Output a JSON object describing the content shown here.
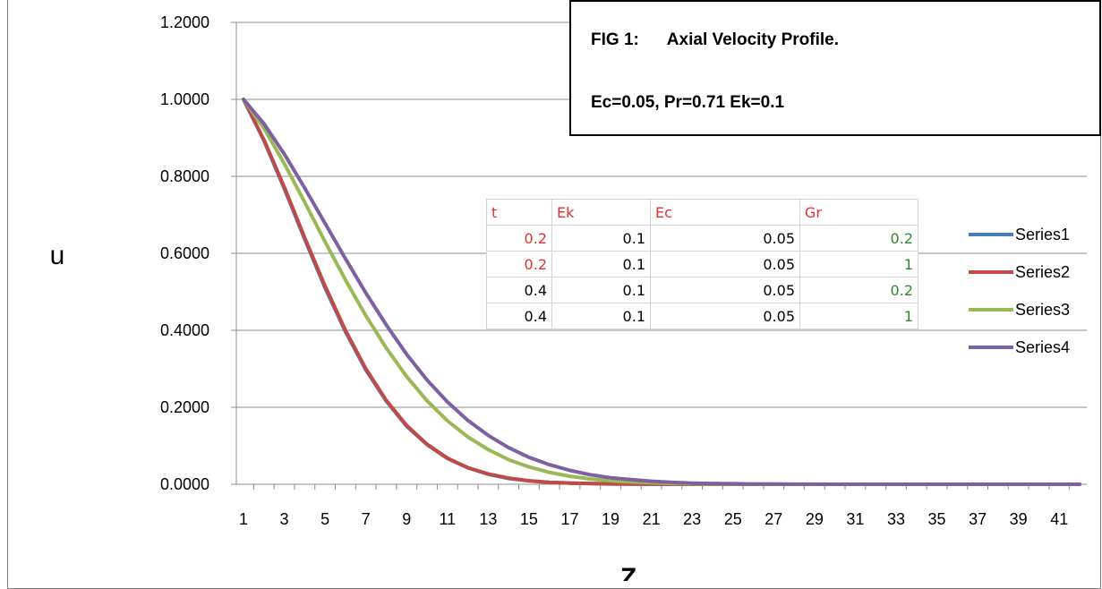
{
  "chart_data": {
    "type": "line",
    "title_line1": "FIG 1:      Axial Velocity Profile.",
    "title_line2": "Ec=0.05, Pr=0.71 Ek=0.1",
    "xlabel": "Z",
    "ylabel": "u",
    "x": [
      1,
      2,
      3,
      4,
      5,
      6,
      7,
      8,
      9,
      10,
      11,
      12,
      13,
      14,
      15,
      16,
      17,
      18,
      19,
      20,
      21,
      22,
      23,
      24,
      25,
      26,
      27,
      28,
      29,
      30,
      31,
      32,
      33,
      34,
      35,
      36,
      37,
      38,
      39,
      40,
      41,
      42
    ],
    "x_tick_labels": [
      "1",
      "3",
      "5",
      "7",
      "9",
      "11",
      "13",
      "15",
      "17",
      "19",
      "21",
      "23",
      "25",
      "27",
      "29",
      "31",
      "33",
      "35",
      "37",
      "39",
      "41"
    ],
    "ylim": [
      0,
      1.2
    ],
    "y_tick_labels": [
      "0.0000",
      "0.2000",
      "0.4000",
      "0.6000",
      "0.8000",
      "1.0000",
      "1.2000"
    ],
    "grid": true,
    "legend_position": "right",
    "series": [
      {
        "name": "Series1",
        "color": "#4a7ebb",
        "values": [
          1.0,
          0.893,
          0.768,
          0.637,
          0.51,
          0.396,
          0.297,
          0.216,
          0.151,
          0.103,
          0.067,
          0.043,
          0.026,
          0.015,
          0.009,
          0.005,
          0.003,
          0.002,
          0.001,
          0.0005,
          0.0003,
          0.0001,
          0,
          0,
          0,
          0,
          0,
          0,
          0,
          0,
          0,
          0,
          0,
          0,
          0,
          0,
          0,
          0,
          0,
          0,
          0,
          0
        ]
      },
      {
        "name": "Series2",
        "color": "#be4b48",
        "values": [
          1.0,
          0.895,
          0.772,
          0.641,
          0.515,
          0.4,
          0.3,
          0.218,
          0.153,
          0.104,
          0.068,
          0.043,
          0.027,
          0.016,
          0.009,
          0.005,
          0.003,
          0.002,
          0.001,
          0.0005,
          0.0003,
          0.0001,
          0,
          0,
          0,
          0,
          0,
          0,
          0,
          0,
          0,
          0,
          0,
          0,
          0,
          0,
          0,
          0,
          0,
          0,
          0,
          0
        ]
      },
      {
        "name": "Series3",
        "color": "#98b954",
        "values": [
          1.0,
          0.925,
          0.833,
          0.733,
          0.63,
          0.531,
          0.438,
          0.354,
          0.28,
          0.217,
          0.165,
          0.123,
          0.09,
          0.064,
          0.045,
          0.031,
          0.021,
          0.014,
          0.009,
          0.006,
          0.004,
          0.002,
          0.0015,
          0.001,
          0.0005,
          0.0003,
          0.0002,
          0.0001,
          0,
          0,
          0,
          0,
          0,
          0,
          0,
          0,
          0,
          0,
          0,
          0,
          0,
          0
        ]
      },
      {
        "name": "Series4",
        "color": "#7d60a0",
        "values": [
          1.0,
          0.937,
          0.858,
          0.77,
          0.678,
          0.586,
          0.497,
          0.414,
          0.338,
          0.271,
          0.214,
          0.166,
          0.127,
          0.095,
          0.07,
          0.051,
          0.036,
          0.025,
          0.017,
          0.012,
          0.008,
          0.005,
          0.003,
          0.002,
          0.0013,
          0.0008,
          0.0005,
          0.0003,
          0.0002,
          0.0001,
          0,
          0,
          0,
          0,
          0,
          0,
          0,
          0,
          0,
          0,
          0,
          0
        ]
      }
    ]
  },
  "param_table": {
    "headers": [
      "t",
      "Ek",
      "Ec",
      "Gr"
    ],
    "rows": [
      [
        "0.2",
        "0.1",
        "0.05",
        "0.2"
      ],
      [
        "0.2",
        "0.1",
        "0.05",
        "1"
      ],
      [
        "0.4",
        "0.1",
        "0.05",
        "0.2"
      ],
      [
        "0.4",
        "0.1",
        "0.05",
        "1"
      ]
    ],
    "colors": {
      "header": "#e0312f",
      "t_low": "#e0312f",
      "t_high": "#000000",
      "gr": "#2e8b2e",
      "default": "#000000"
    }
  }
}
